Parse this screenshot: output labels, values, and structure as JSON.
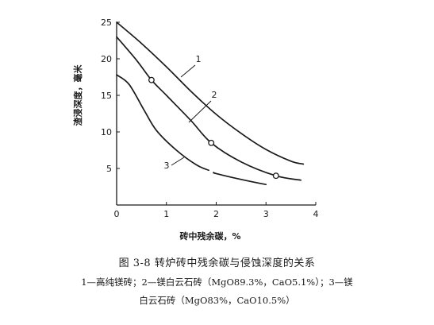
{
  "chart_data": {
    "type": "line",
    "xlabel": "砖中残余碳，%",
    "ylabel": "渣浸深度，毫米",
    "xlim": [
      0,
      4
    ],
    "ylim": [
      0,
      25
    ],
    "xticks": [
      0,
      1,
      2,
      3,
      4
    ],
    "yticks": [
      5,
      10,
      15,
      20,
      25
    ],
    "grid": false,
    "series": [
      {
        "name": "1",
        "x": [
          0,
          0.5,
          1,
          1.5,
          2,
          2.5,
          3,
          3.5,
          3.75
        ],
        "y": [
          25,
          22.1,
          18.9,
          15.5,
          12.4,
          9.8,
          7.6,
          6.0,
          5.6
        ]
      },
      {
        "name": "2",
        "x": [
          0,
          0.4,
          0.7,
          1,
          1.5,
          1.9,
          2.5,
          3.2,
          3.7
        ],
        "y": [
          23,
          19.8,
          17.1,
          15.0,
          11.5,
          8.5,
          5.9,
          4.0,
          3.4
        ],
        "markers": [
          [
            0.7,
            17.1
          ],
          [
            1.9,
            8.5
          ],
          [
            3.2,
            4.0
          ]
        ]
      },
      {
        "name": "3",
        "x": [
          0,
          0.25,
          0.55,
          0.8,
          1.2,
          1.6,
          2.0,
          2.5,
          3.0
        ],
        "y": [
          17.8,
          16.5,
          13.0,
          10.2,
          7.5,
          5.5,
          4.3,
          3.5,
          2.8
        ],
        "gap": [
          1.85,
          1.95
        ]
      }
    ]
  },
  "caption": {
    "title": "图 3-8   转炉砖中残余碳与侵蚀深度的关系",
    "legend_line1": "1—高纯镁砖；2—镁白云石砖（MgO89.3%，CaO5.1%）；3—镁",
    "legend_line2": "白云石砖（MgO83%，CaO10.5%）"
  }
}
